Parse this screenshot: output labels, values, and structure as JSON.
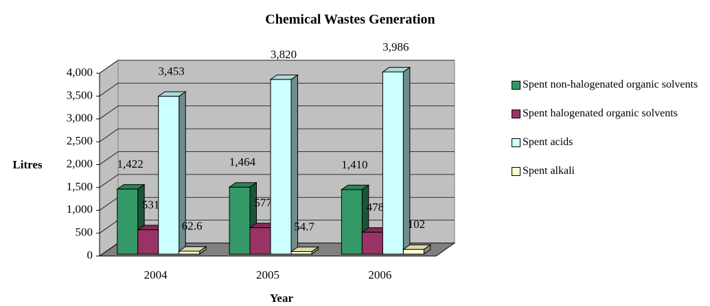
{
  "chart_data": {
    "type": "bar3d",
    "title": "Chemical Wastes Generation",
    "x_label": "Year",
    "y_label": "Litres",
    "categories": [
      "2004",
      "2005",
      "2006"
    ],
    "series": [
      {
        "name": "Spent non-halogenated organic solvents",
        "color": "#339966",
        "values": [
          1422,
          1464,
          1410
        ],
        "value_labels": [
          "1,422",
          "1,464",
          "1,410"
        ]
      },
      {
        "name": "Spent halogenated organic solvents",
        "color": "#993366",
        "values": [
          531,
          577,
          478
        ]
      },
      {
        "name": "Spent acids",
        "color": "#CCFFFF",
        "values": [
          3453,
          3820,
          3986
        ],
        "value_labels": [
          "3,453",
          "3,820",
          "3,986"
        ]
      },
      {
        "name": "Spent alkali",
        "color": "#FFFFCC",
        "values": [
          62.6,
          54.7,
          102
        ]
      }
    ],
    "ylim": [
      0,
      4000
    ],
    "yticks": [
      0,
      500,
      {
        "value": 1000,
        "label": "1,000"
      },
      {
        "value": 1500,
        "label": "1,500"
      },
      {
        "value": 2000,
        "label": "2,000"
      },
      {
        "value": 2500,
        "label": "2,500"
      },
      {
        "value": 3000,
        "label": "3,000"
      },
      {
        "value": 3500,
        "label": "3,500"
      },
      {
        "value": 4000,
        "label": "4,000"
      }
    ],
    "grid": true,
    "legend": "right"
  }
}
